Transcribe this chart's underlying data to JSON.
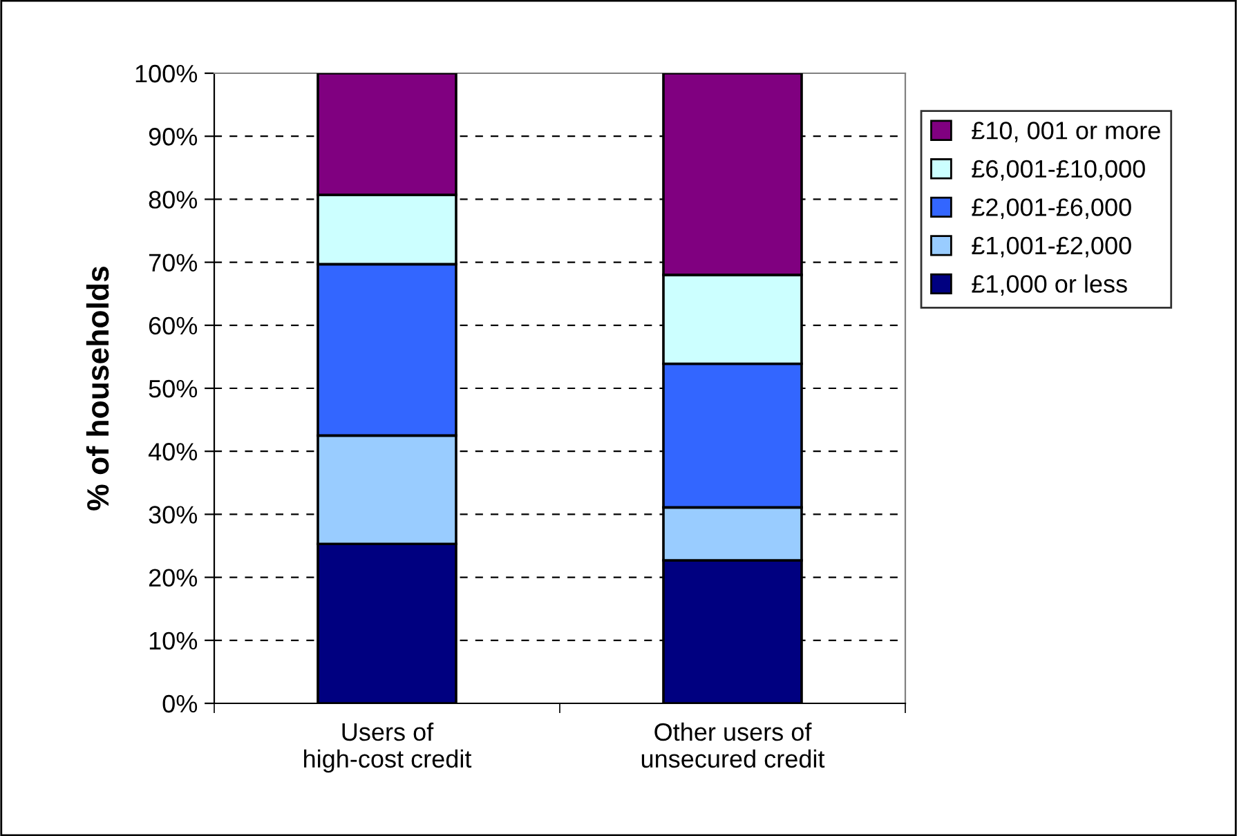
{
  "chart_data": {
    "type": "bar",
    "stacked": true,
    "ylabel": "% of households",
    "categories": [
      "Users of high-cost credit",
      "Other users of unsecured credit"
    ],
    "series": [
      {
        "name": "£1,000 or less",
        "color": "#000080",
        "values": [
          25.3,
          22.7
        ]
      },
      {
        "name": "£1,001-£2,000",
        "color": "#99ccff",
        "values": [
          17.2,
          8.4
        ]
      },
      {
        "name": "£2,001-£6,000",
        "color": "#3366ff",
        "values": [
          27.2,
          22.8
        ]
      },
      {
        "name": "£6,001-£10,000",
        "color": "#ccffff",
        "values": [
          11.0,
          14.1
        ]
      },
      {
        "name": "£10, 001 or more",
        "color": "#800080",
        "values": [
          19.3,
          32.0
        ]
      }
    ],
    "ylim": [
      0,
      100
    ],
    "yticks": [
      {
        "value": 0,
        "label": "0%"
      },
      {
        "value": 10,
        "label": "10%"
      },
      {
        "value": 20,
        "label": "20%"
      },
      {
        "value": 30,
        "label": "30%"
      },
      {
        "value": 40,
        "label": "40%"
      },
      {
        "value": 50,
        "label": "50%"
      },
      {
        "value": 60,
        "label": "60%"
      },
      {
        "value": 70,
        "label": "70%"
      },
      {
        "value": 80,
        "label": "80%"
      },
      {
        "value": 90,
        "label": "90%"
      },
      {
        "value": 100,
        "label": "100%"
      }
    ],
    "grid": "y",
    "legend": "right"
  }
}
